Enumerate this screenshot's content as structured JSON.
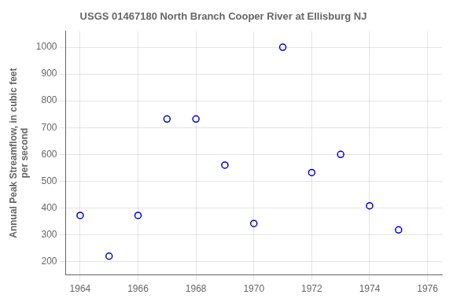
{
  "chart_data": {
    "type": "scatter",
    "title": "USGS 01467180 North Branch Cooper River at Ellisburg NJ",
    "ylabel": "Annual Peak Streamflow, in cubic feet\nper second",
    "x": [
      1964,
      1965,
      1966,
      1967,
      1968,
      1969,
      1970,
      1971,
      1972,
      1973,
      1974,
      1975
    ],
    "values": [
      372,
      220,
      372,
      732,
      732,
      560,
      342,
      1000,
      532,
      600,
      408,
      318
    ],
    "xlim": [
      1963.5,
      1976.5
    ],
    "ylim": [
      150,
      1060
    ],
    "xticks": [
      1964,
      1966,
      1968,
      1970,
      1972,
      1974,
      1976
    ],
    "yticks": [
      200,
      300,
      400,
      500,
      600,
      700,
      800,
      900,
      1000
    ],
    "color": "#0000cc",
    "marker": "circle",
    "grid": true
  }
}
